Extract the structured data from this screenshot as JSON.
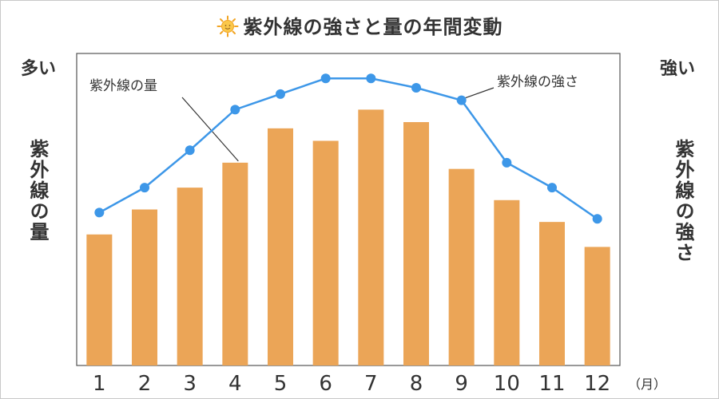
{
  "title": "紫外線の強さと量の年間変動",
  "left_axis": {
    "top_text": "多い",
    "label": "紫外線の量"
  },
  "right_axis": {
    "top_text": "強い",
    "label": "紫外線の強さ"
  },
  "colors": {
    "bar": "#eba557",
    "line": "#3d97e8",
    "text": "#333333"
  },
  "chart_data": {
    "type": "bar",
    "categories": [
      "1",
      "2",
      "3",
      "4",
      "5",
      "6",
      "7",
      "8",
      "9",
      "10",
      "11",
      "12"
    ],
    "x_unit": "（月）",
    "series": [
      {
        "name": "紫外線の量",
        "type": "bar",
        "axis": "left",
        "values": [
          42,
          50,
          57,
          65,
          76,
          72,
          82,
          78,
          63,
          53,
          46,
          38
        ]
      },
      {
        "name": "紫外線の強さ",
        "type": "line",
        "axis": "right",
        "values": [
          49,
          57,
          69,
          82,
          87,
          92,
          92,
          89,
          85,
          65,
          57,
          47
        ]
      }
    ],
    "ylim": [
      0,
      100
    ],
    "annotations": [
      "紫外線の量",
      "紫外線の強さ"
    ]
  }
}
